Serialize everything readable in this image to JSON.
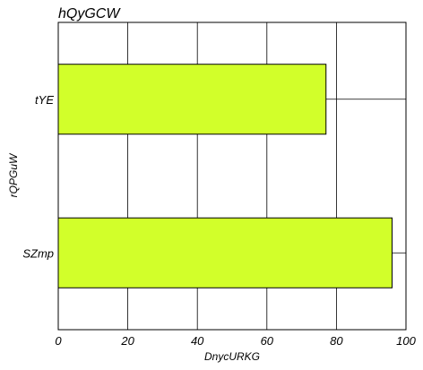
{
  "chart_data": {
    "type": "bar",
    "orientation": "horizontal",
    "title": "hQyGCW",
    "xlabel": "DnycURKG",
    "ylabel": "rQPGuW",
    "categories": [
      "tYE",
      "SZmp"
    ],
    "values": [
      77,
      96
    ],
    "xlim": [
      0,
      100
    ],
    "xticks": [
      "0",
      "20",
      "40",
      "60",
      "80",
      "100"
    ],
    "grid": true,
    "legend": "none",
    "bar_color": "#d2ff2a",
    "bar_edge_color": "#000000"
  }
}
